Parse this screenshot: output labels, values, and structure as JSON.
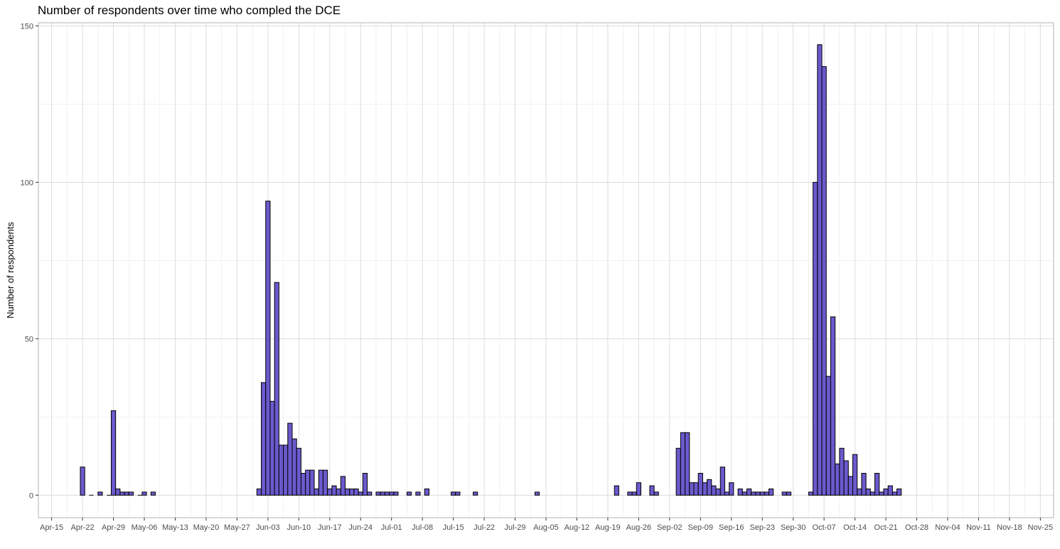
{
  "chart_data": {
    "type": "bar",
    "title": "Number of respondents over time who compled the DCE",
    "xlabel": "",
    "ylabel": "Number of respondents",
    "ylim": [
      -7.2,
      151
    ],
    "yticks": [
      0,
      50,
      100,
      150
    ],
    "xlim": [
      "2019-04-12",
      "2019-11-28"
    ],
    "xticks": [
      {
        "date": "2019-04-15",
        "label": "Apr-15"
      },
      {
        "date": "2019-04-22",
        "label": "Apr-22"
      },
      {
        "date": "2019-04-29",
        "label": "Apr-29"
      },
      {
        "date": "2019-05-06",
        "label": "May-06"
      },
      {
        "date": "2019-05-13",
        "label": "May-13"
      },
      {
        "date": "2019-05-20",
        "label": "May-20"
      },
      {
        "date": "2019-05-27",
        "label": "May-27"
      },
      {
        "date": "2019-06-03",
        "label": "Jun-03"
      },
      {
        "date": "2019-06-10",
        "label": "Jun-10"
      },
      {
        "date": "2019-06-17",
        "label": "Jun-17"
      },
      {
        "date": "2019-06-24",
        "label": "Jun-24"
      },
      {
        "date": "2019-07-01",
        "label": "Jul-01"
      },
      {
        "date": "2019-07-08",
        "label": "Jul-08"
      },
      {
        "date": "2019-07-15",
        "label": "Jul-15"
      },
      {
        "date": "2019-07-22",
        "label": "Jul-22"
      },
      {
        "date": "2019-07-29",
        "label": "Jul-29"
      },
      {
        "date": "2019-08-05",
        "label": "Aug-05"
      },
      {
        "date": "2019-08-12",
        "label": "Aug-12"
      },
      {
        "date": "2019-08-19",
        "label": "Aug-19"
      },
      {
        "date": "2019-08-26",
        "label": "Aug-26"
      },
      {
        "date": "2019-09-02",
        "label": "Sep-02"
      },
      {
        "date": "2019-09-09",
        "label": "Sep-09"
      },
      {
        "date": "2019-09-16",
        "label": "Sep-16"
      },
      {
        "date": "2019-09-23",
        "label": "Sep-23"
      },
      {
        "date": "2019-09-30",
        "label": "Sep-30"
      },
      {
        "date": "2019-10-07",
        "label": "Oct-07"
      },
      {
        "date": "2019-10-14",
        "label": "Oct-14"
      },
      {
        "date": "2019-10-21",
        "label": "Oct-21"
      },
      {
        "date": "2019-10-28",
        "label": "Oct-28"
      },
      {
        "date": "2019-11-04",
        "label": "Nov-04"
      },
      {
        "date": "2019-11-11",
        "label": "Nov-11"
      },
      {
        "date": "2019-11-18",
        "label": "Nov-18"
      },
      {
        "date": "2019-11-25",
        "label": "Nov-25"
      }
    ],
    "grid": true,
    "bar_color": "#6A5ACD",
    "bar_edge_color": "#000000",
    "grid_color": "#dcdcdc",
    "points": [
      {
        "date": "2019-04-22",
        "value": 9
      },
      {
        "date": "2019-04-24",
        "value": 0
      },
      {
        "date": "2019-04-26",
        "value": 1
      },
      {
        "date": "2019-04-28",
        "value": 0
      },
      {
        "date": "2019-04-29",
        "value": 27
      },
      {
        "date": "2019-04-30",
        "value": 2
      },
      {
        "date": "2019-05-01",
        "value": 1
      },
      {
        "date": "2019-05-02",
        "value": 1
      },
      {
        "date": "2019-05-03",
        "value": 1
      },
      {
        "date": "2019-05-05",
        "value": 0
      },
      {
        "date": "2019-05-06",
        "value": 1
      },
      {
        "date": "2019-05-08",
        "value": 1
      },
      {
        "date": "2019-06-01",
        "value": 2
      },
      {
        "date": "2019-06-02",
        "value": 36
      },
      {
        "date": "2019-06-03",
        "value": 94
      },
      {
        "date": "2019-06-04",
        "value": 30
      },
      {
        "date": "2019-06-05",
        "value": 68
      },
      {
        "date": "2019-06-06",
        "value": 16
      },
      {
        "date": "2019-06-07",
        "value": 16
      },
      {
        "date": "2019-06-08",
        "value": 23
      },
      {
        "date": "2019-06-09",
        "value": 18
      },
      {
        "date": "2019-06-10",
        "value": 15
      },
      {
        "date": "2019-06-11",
        "value": 7
      },
      {
        "date": "2019-06-12",
        "value": 8
      },
      {
        "date": "2019-06-13",
        "value": 8
      },
      {
        "date": "2019-06-14",
        "value": 2
      },
      {
        "date": "2019-06-15",
        "value": 8
      },
      {
        "date": "2019-06-16",
        "value": 8
      },
      {
        "date": "2019-06-17",
        "value": 2
      },
      {
        "date": "2019-06-18",
        "value": 3
      },
      {
        "date": "2019-06-19",
        "value": 2
      },
      {
        "date": "2019-06-20",
        "value": 6
      },
      {
        "date": "2019-06-21",
        "value": 2
      },
      {
        "date": "2019-06-22",
        "value": 2
      },
      {
        "date": "2019-06-23",
        "value": 2
      },
      {
        "date": "2019-06-24",
        "value": 1
      },
      {
        "date": "2019-06-25",
        "value": 7
      },
      {
        "date": "2019-06-26",
        "value": 1
      },
      {
        "date": "2019-06-28",
        "value": 1
      },
      {
        "date": "2019-06-29",
        "value": 1
      },
      {
        "date": "2019-06-30",
        "value": 1
      },
      {
        "date": "2019-07-01",
        "value": 1
      },
      {
        "date": "2019-07-02",
        "value": 1
      },
      {
        "date": "2019-07-05",
        "value": 1
      },
      {
        "date": "2019-07-07",
        "value": 1
      },
      {
        "date": "2019-07-09",
        "value": 2
      },
      {
        "date": "2019-07-15",
        "value": 1
      },
      {
        "date": "2019-07-16",
        "value": 1
      },
      {
        "date": "2019-07-20",
        "value": 1
      },
      {
        "date": "2019-08-03",
        "value": 1
      },
      {
        "date": "2019-08-21",
        "value": 3
      },
      {
        "date": "2019-08-24",
        "value": 1
      },
      {
        "date": "2019-08-25",
        "value": 1
      },
      {
        "date": "2019-08-26",
        "value": 4
      },
      {
        "date": "2019-08-29",
        "value": 3
      },
      {
        "date": "2019-08-30",
        "value": 1
      },
      {
        "date": "2019-09-04",
        "value": 15
      },
      {
        "date": "2019-09-05",
        "value": 20
      },
      {
        "date": "2019-09-06",
        "value": 20
      },
      {
        "date": "2019-09-07",
        "value": 4
      },
      {
        "date": "2019-09-08",
        "value": 4
      },
      {
        "date": "2019-09-09",
        "value": 7
      },
      {
        "date": "2019-09-10",
        "value": 4
      },
      {
        "date": "2019-09-11",
        "value": 5
      },
      {
        "date": "2019-09-12",
        "value": 3
      },
      {
        "date": "2019-09-13",
        "value": 2
      },
      {
        "date": "2019-09-14",
        "value": 9
      },
      {
        "date": "2019-09-15",
        "value": 1
      },
      {
        "date": "2019-09-16",
        "value": 4
      },
      {
        "date": "2019-09-18",
        "value": 2
      },
      {
        "date": "2019-09-19",
        "value": 1
      },
      {
        "date": "2019-09-20",
        "value": 2
      },
      {
        "date": "2019-09-21",
        "value": 1
      },
      {
        "date": "2019-09-22",
        "value": 1
      },
      {
        "date": "2019-09-23",
        "value": 1
      },
      {
        "date": "2019-09-24",
        "value": 1
      },
      {
        "date": "2019-09-25",
        "value": 2
      },
      {
        "date": "2019-09-28",
        "value": 1
      },
      {
        "date": "2019-09-29",
        "value": 1
      },
      {
        "date": "2019-10-04",
        "value": 1
      },
      {
        "date": "2019-10-05",
        "value": 100
      },
      {
        "date": "2019-10-06",
        "value": 144
      },
      {
        "date": "2019-10-07",
        "value": 137
      },
      {
        "date": "2019-10-08",
        "value": 38
      },
      {
        "date": "2019-10-09",
        "value": 57
      },
      {
        "date": "2019-10-10",
        "value": 10
      },
      {
        "date": "2019-10-11",
        "value": 15
      },
      {
        "date": "2019-10-12",
        "value": 11
      },
      {
        "date": "2019-10-13",
        "value": 6
      },
      {
        "date": "2019-10-14",
        "value": 13
      },
      {
        "date": "2019-10-15",
        "value": 2
      },
      {
        "date": "2019-10-16",
        "value": 7
      },
      {
        "date": "2019-10-17",
        "value": 2
      },
      {
        "date": "2019-10-18",
        "value": 1
      },
      {
        "date": "2019-10-19",
        "value": 7
      },
      {
        "date": "2019-10-20",
        "value": 1
      },
      {
        "date": "2019-10-21",
        "value": 2
      },
      {
        "date": "2019-10-22",
        "value": 3
      },
      {
        "date": "2019-10-23",
        "value": 1
      },
      {
        "date": "2019-10-24",
        "value": 2
      }
    ]
  }
}
